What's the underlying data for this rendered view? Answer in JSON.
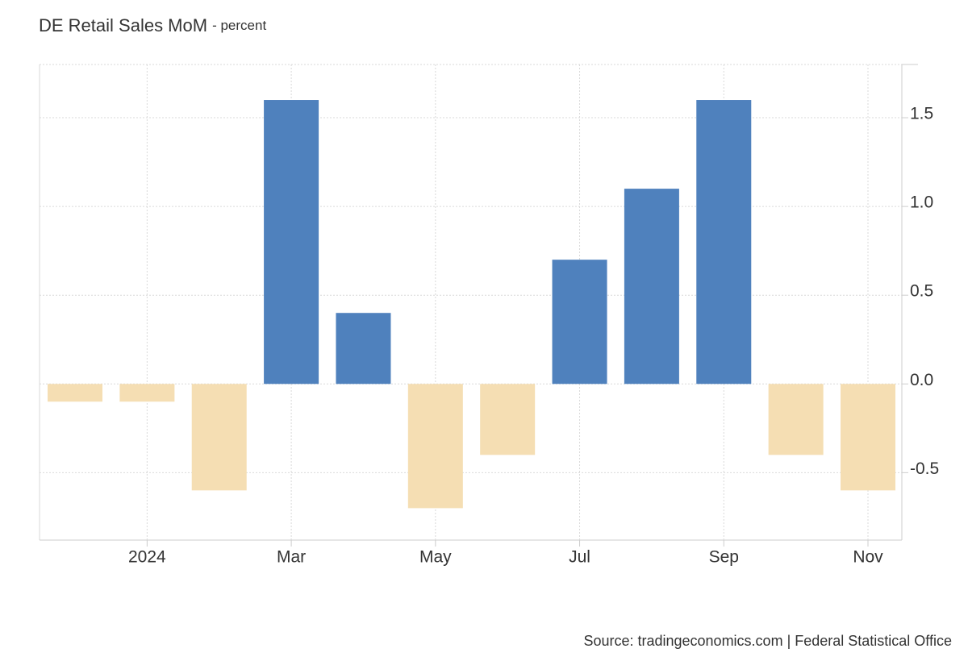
{
  "chart_data": {
    "type": "bar",
    "title": "DE Retail Sales MoM",
    "subtitle": "- percent",
    "source": "Source: tradingeconomics.com | Federal Statistical Office",
    "categories": [
      null,
      "2024",
      null,
      "Mar",
      null,
      "May",
      null,
      "Jul",
      null,
      "Sep",
      null,
      "Nov"
    ],
    "values": [
      -0.1,
      -0.1,
      -0.6,
      1.6,
      0.4,
      -0.7,
      -0.4,
      0.7,
      1.1,
      1.6,
      -0.4,
      -0.6
    ],
    "positive_color": "#4f81bd",
    "negative_color": "#f5deb3",
    "ylim": [
      -0.88,
      1.8
    ],
    "yticks": [
      -0.5,
      {
        "value": 0,
        "label": "0.0"
      },
      0.5,
      {
        "value": 1,
        "label": "1.0"
      },
      1.5
    ],
    "grid": true
  }
}
